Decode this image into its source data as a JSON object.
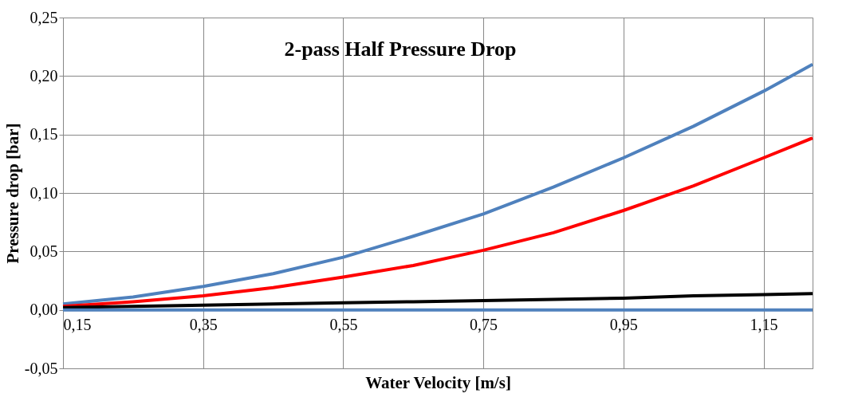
{
  "chart_data": {
    "type": "line",
    "title": "2-pass Half Pressure Drop",
    "xlabel": "Water Velocity [m/s]",
    "ylabel": "Pressure drop [bar]",
    "x": [
      0.15,
      0.25,
      0.35,
      0.45,
      0.55,
      0.65,
      0.75,
      0.85,
      0.95,
      1.05,
      1.15,
      1.22
    ],
    "series": [
      {
        "color": "#4f81bd",
        "values": [
          0.005,
          0.011,
          0.02,
          0.031,
          0.045,
          0.063,
          0.082,
          0.105,
          0.13,
          0.157,
          0.187,
          0.21
        ]
      },
      {
        "color": "#ff0000",
        "values": [
          0.003,
          0.007,
          0.012,
          0.019,
          0.028,
          0.038,
          0.051,
          0.066,
          0.085,
          0.106,
          0.13,
          0.147
        ]
      },
      {
        "color": "#000000",
        "values": [
          0.002,
          0.003,
          0.004,
          0.005,
          0.006,
          0.007,
          0.008,
          0.009,
          0.01,
          0.012,
          0.013,
          0.014
        ]
      },
      {
        "color": "#4f81bd",
        "values": [
          0,
          0,
          0,
          0,
          0,
          0,
          0,
          0,
          0,
          0,
          0,
          0
        ]
      }
    ],
    "xlim": [
      0.15,
      1.22
    ],
    "ylim": [
      -0.05,
      0.25
    ],
    "xticks": [
      {
        "value": 0.15,
        "label": "0,15"
      },
      {
        "value": 0.35,
        "label": "0,35"
      },
      {
        "value": 0.55,
        "label": "0,55"
      },
      {
        "value": 0.75,
        "label": "0,75"
      },
      {
        "value": 0.95,
        "label": "0,95"
      },
      {
        "value": 1.15,
        "label": "1,15"
      }
    ],
    "yticks": [
      {
        "value": -0.05,
        "label": "-0,05"
      },
      {
        "value": 0,
        "label": "0,00"
      },
      {
        "value": 0.05,
        "label": "0,05"
      },
      {
        "value": 0.1,
        "label": "0,10"
      },
      {
        "value": 0.15,
        "label": "0,15"
      },
      {
        "value": 0.2,
        "label": "0,20"
      },
      {
        "value": 0.25,
        "label": "0,25"
      }
    ],
    "grid": true,
    "legend": false,
    "marker": "none",
    "line_style": "solid"
  }
}
